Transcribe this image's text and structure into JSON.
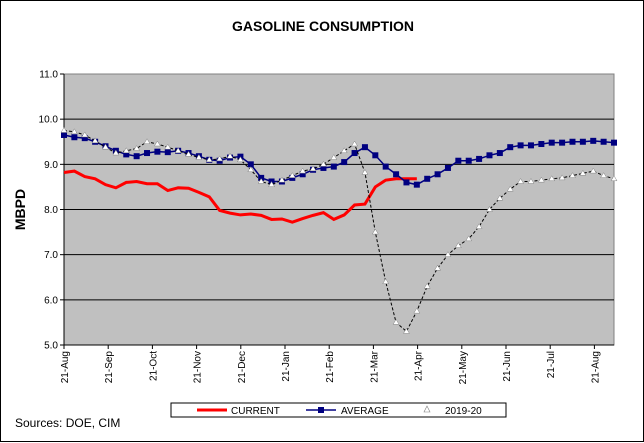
{
  "chart_data": {
    "type": "line",
    "title": "GASOLINE CONSUMPTION",
    "ylabel": "MBPD",
    "xlabel": "",
    "ylim": [
      5.0,
      11.0
    ],
    "y_ticks": [
      "5.0",
      "6.0",
      "7.0",
      "8.0",
      "9.0",
      "10.0",
      "11.0"
    ],
    "grid": true,
    "legend_position": "bottom",
    "x_tick_labels": [
      "21-Aug",
      "21-Sep",
      "21-Oct",
      "21-Nov",
      "21-Dec",
      "21-Jan",
      "21-Feb",
      "21-Mar",
      "21-Apr",
      "21-May",
      "21-Jun",
      "21-Jul",
      "21-Aug"
    ],
    "x_range": [
      0,
      53
    ],
    "series": [
      {
        "name": "CURRENT",
        "color": "#ff0000",
        "marker": "none",
        "x": [
          0,
          1,
          2,
          3,
          4,
          5,
          6,
          7,
          8,
          9,
          10,
          11,
          12,
          13,
          14,
          15,
          16,
          17,
          18,
          19,
          20,
          21,
          22,
          23,
          24,
          25,
          26,
          27,
          28,
          29,
          30,
          31,
          32,
          33,
          34
        ],
        "values": [
          8.82,
          8.85,
          8.73,
          8.68,
          8.55,
          8.48,
          8.6,
          8.62,
          8.57,
          8.57,
          8.42,
          8.48,
          8.47,
          8.38,
          8.28,
          7.98,
          7.92,
          7.88,
          7.9,
          7.87,
          7.78,
          7.79,
          7.72,
          7.8,
          7.87,
          7.93,
          7.78,
          7.88,
          8.1,
          8.12,
          8.5,
          8.65,
          8.68,
          8.68,
          8.68
        ]
      },
      {
        "name": "AVERAGE",
        "color": "#000080",
        "marker": "square",
        "x": [
          0,
          1,
          2,
          3,
          4,
          5,
          6,
          7,
          8,
          9,
          10,
          11,
          12,
          13,
          14,
          15,
          16,
          17,
          18,
          19,
          20,
          21,
          22,
          23,
          24,
          25,
          26,
          27,
          28,
          29,
          30,
          31,
          32,
          33,
          34,
          35,
          36,
          37,
          38,
          39,
          40,
          41,
          42,
          43,
          44,
          45,
          46,
          47,
          48,
          49,
          50,
          51,
          52,
          53
        ],
        "values": [
          9.65,
          9.6,
          9.58,
          9.5,
          9.4,
          9.3,
          9.22,
          9.18,
          9.25,
          9.28,
          9.27,
          9.3,
          9.25,
          9.18,
          9.1,
          9.08,
          9.15,
          9.17,
          9.0,
          8.7,
          8.62,
          8.62,
          8.7,
          8.78,
          8.88,
          8.92,
          8.95,
          9.05,
          9.25,
          9.38,
          9.2,
          8.95,
          8.78,
          8.6,
          8.55,
          8.68,
          8.78,
          8.92,
          9.08,
          9.08,
          9.12,
          9.2,
          9.25,
          9.38,
          9.42,
          9.42,
          9.45,
          9.48,
          9.48,
          9.5,
          9.5,
          9.52,
          9.5,
          9.48
        ]
      },
      {
        "name": "2019-20",
        "color": "#000000",
        "marker": "triangle",
        "x": [
          0,
          1,
          2,
          3,
          4,
          5,
          6,
          7,
          8,
          9,
          10,
          11,
          12,
          13,
          14,
          15,
          16,
          17,
          18,
          19,
          20,
          21,
          22,
          23,
          24,
          25,
          26,
          27,
          28,
          29,
          30,
          31,
          32,
          33,
          34,
          35,
          36,
          37,
          38,
          39,
          40,
          41,
          42,
          43,
          44,
          45,
          46,
          47,
          48,
          49,
          50,
          51,
          52,
          53
        ],
        "values": [
          9.75,
          9.72,
          9.65,
          9.52,
          9.38,
          9.25,
          9.3,
          9.35,
          9.5,
          9.45,
          9.38,
          9.3,
          9.22,
          9.15,
          9.1,
          9.12,
          9.18,
          9.1,
          8.88,
          8.62,
          8.55,
          8.65,
          8.75,
          8.85,
          8.9,
          9.0,
          9.15,
          9.3,
          9.45,
          8.82,
          7.5,
          6.4,
          5.5,
          5.3,
          5.75,
          6.3,
          6.7,
          7.0,
          7.2,
          7.35,
          7.62,
          8.0,
          8.25,
          8.45,
          8.62,
          8.62,
          8.65,
          8.68,
          8.7,
          8.75,
          8.8,
          8.85,
          8.75,
          8.68
        ]
      }
    ]
  },
  "source_text": "Sources:  DOE, CIM",
  "colors": {
    "plot_bg": "#c0c0c0",
    "current": "#ff0000",
    "average": "#000080",
    "prior": "#000000"
  }
}
